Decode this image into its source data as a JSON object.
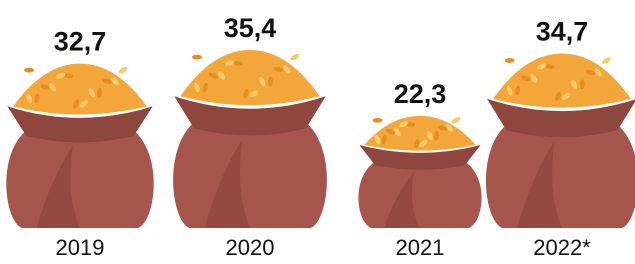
{
  "chart_data": {
    "type": "pictorial-bar",
    "categories": [
      "2019",
      "2020",
      "2021",
      "2022*"
    ],
    "values": [
      32.7,
      35.4,
      22.3,
      34.7
    ],
    "value_labels": [
      "32,7",
      "35,4",
      "22,3",
      "34,7"
    ],
    "color": "#a5554c"
  }
}
